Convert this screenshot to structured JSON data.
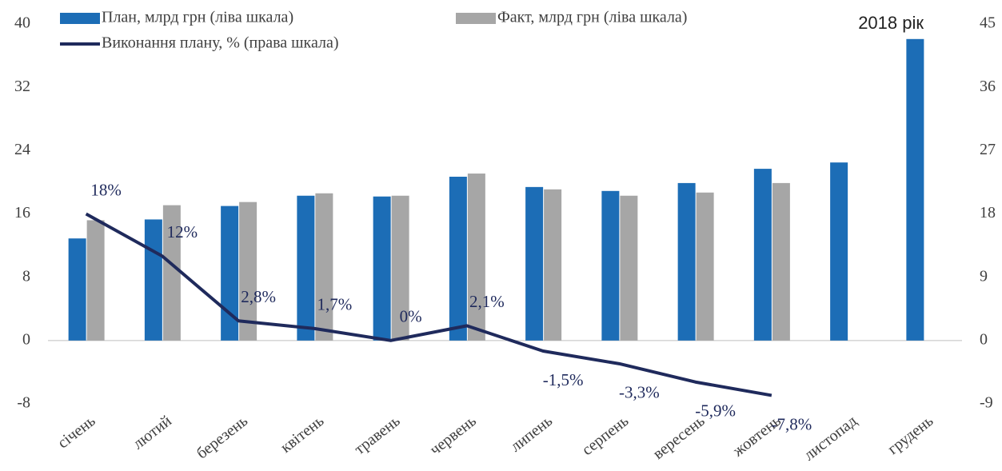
{
  "chart_data": {
    "type": "bar_line",
    "title": "2018 рік",
    "categories": [
      "січень",
      "лютий",
      "березень",
      "квітень",
      "травень",
      "червень",
      "липень",
      "серпень",
      "вересень",
      "жовтень",
      "листопад",
      "грудень"
    ],
    "series": [
      {
        "name": "План, млрд грн (ліва шкала)",
        "color": "#1c6db6",
        "type": "bar",
        "values": [
          12.9,
          15.3,
          17.0,
          18.3,
          18.2,
          20.7,
          19.4,
          18.9,
          19.9,
          21.7,
          22.5,
          38.1
        ]
      },
      {
        "name": "Факт, млрд грн (ліва шкала)",
        "color": "#a6a6a6",
        "type": "bar",
        "values": [
          15.2,
          17.1,
          17.5,
          18.6,
          18.3,
          21.1,
          19.1,
          18.3,
          18.7,
          19.9,
          null,
          null
        ]
      },
      {
        "name": "Виконання плану, % (права шкала)",
        "color": "#1f2a5c",
        "type": "line",
        "axis": "y2",
        "values": [
          18,
          12,
          2.8,
          1.7,
          0,
          2.1,
          -1.5,
          -3.3,
          -5.9,
          -7.8,
          null,
          null
        ],
        "value_labels": [
          "18%",
          "12%",
          "2,8%",
          "1,7%",
          "0%",
          "2,1%",
          "-1,5%",
          "-3,3%",
          "-5,9%",
          "-7,8%",
          null,
          null
        ]
      }
    ],
    "ylim": [
      -8,
      40
    ],
    "yticks": [
      -8,
      0,
      8,
      16,
      24,
      32,
      40
    ],
    "y2lim": [
      -9,
      45
    ],
    "y2ticks": [
      -9,
      0,
      9,
      18,
      27,
      36,
      45
    ],
    "grid": false
  }
}
